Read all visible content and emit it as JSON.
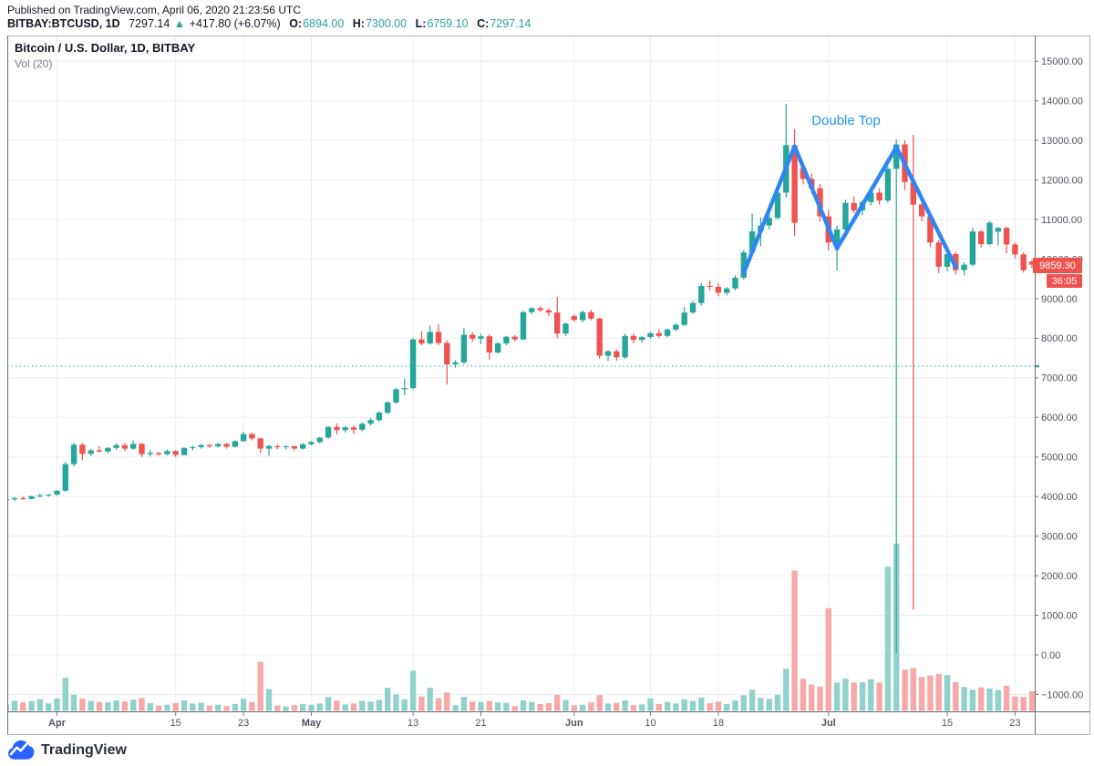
{
  "header": {
    "published_line": "Published on TradingView.com, April 06, 2020 21:23:56 UTC",
    "symbol_bold": "BITBAY:BTCUSD, 1D",
    "last_price": "7297.14",
    "change_arrow": "▲",
    "change_text": "+417.80 (+6.07%)",
    "o_label": "O:",
    "o_value": "6894.00",
    "h_label": "H:",
    "h_value": "7300.00",
    "l_label": "L:",
    "l_value": "6759.10",
    "c_label": "C:",
    "c_value": "7297.14"
  },
  "legend": {
    "title": "Bitcoin / U.S. Dollar, 1D, BITBAY",
    "indicator": "Vol (20)"
  },
  "annotation": {
    "label": "Double Top"
  },
  "price_scale": {
    "badge_price": "9859.30",
    "badge_countdown": "36:05",
    "ticks": [
      {
        "v": 15000,
        "label": "15000.00"
      },
      {
        "v": 14000,
        "label": "14000.00"
      },
      {
        "v": 13000,
        "label": "13000.00"
      },
      {
        "v": 12000,
        "label": "12000.00"
      },
      {
        "v": 11000,
        "label": "11000.00"
      },
      {
        "v": 10000,
        "label": "10000.00"
      },
      {
        "v": 9000,
        "label": "9000.00"
      },
      {
        "v": 8000,
        "label": "8000.00"
      },
      {
        "v": 7000,
        "label": "7000.00"
      },
      {
        "v": 6000,
        "label": "6000.00"
      },
      {
        "v": 5000,
        "label": "5000.00"
      },
      {
        "v": 4000,
        "label": "4000.00"
      },
      {
        "v": 3000,
        "label": "3000.00"
      },
      {
        "v": 2000,
        "label": "2000.00"
      },
      {
        "v": 1000,
        "label": "1000.00"
      },
      {
        "v": 0,
        "label": "0.00"
      },
      {
        "v": -1000,
        "label": "−1000.00"
      }
    ]
  },
  "time_scale": {
    "ticks": [
      {
        "label": "Apr",
        "day": 6,
        "month": true
      },
      {
        "label": "15",
        "day": 20,
        "month": false
      },
      {
        "label": "23",
        "day": 28,
        "month": false
      },
      {
        "label": "May",
        "day": 36,
        "month": true
      },
      {
        "label": "13",
        "day": 48,
        "month": false
      },
      {
        "label": "21",
        "day": 56,
        "month": false
      },
      {
        "label": "Jun",
        "day": 67,
        "month": true
      },
      {
        "label": "10",
        "day": 76,
        "month": false
      },
      {
        "label": "18",
        "day": 84,
        "month": false
      },
      {
        "label": "Jul",
        "day": 97,
        "month": true
      },
      {
        "label": "15",
        "day": 111,
        "month": false
      },
      {
        "label": "23",
        "day": 119,
        "month": false
      }
    ]
  },
  "current_price_line": {
    "price": 7297.14
  },
  "logo": {
    "text": "TradingView"
  },
  "colors": {
    "up": "#26a69a",
    "down": "#ef5350",
    "vol_up": "#92d2cc",
    "vol_down": "#f7a9a7",
    "pattern_line": "#2e86f5",
    "annotation_text": "#2196f3",
    "badge": "#ef5350",
    "grid": "#e9edf2",
    "frame": "#b2b5be",
    "frame_dark": "#6a6d78",
    "axis_text": "#50535c",
    "logo_blue": "#2962ff"
  },
  "chart_data": {
    "type": "candlestick+volume",
    "symbol": "BITBAY:BTCUSD",
    "interval": "1D",
    "title": "Bitcoin / U.S. Dollar",
    "ylim": [
      -1427,
      15650
    ],
    "grid": true,
    "volume_note": "v = volume bar top read on the shared right price axis; bars rise from pane bottom (-1427)",
    "columns": [
      "date",
      "open",
      "high",
      "low",
      "close",
      "v"
    ],
    "candles": [
      [
        "Mar 26",
        3900,
        3960,
        3870,
        3930,
        -1250
      ],
      [
        "Mar 27",
        3930,
        3990,
        3890,
        3960,
        -1160
      ],
      [
        "Mar 28",
        3960,
        4000,
        3920,
        3940,
        -1200
      ],
      [
        "Mar 29",
        3940,
        4020,
        3930,
        4010,
        -1170
      ],
      [
        "Mar 30",
        4010,
        4080,
        3970,
        4030,
        -1120
      ],
      [
        "Mar 31",
        4030,
        4060,
        3990,
        4050,
        -1230
      ],
      [
        "Apr 1",
        4050,
        4160,
        4020,
        4150,
        -1100
      ],
      [
        "Apr 2",
        4150,
        4880,
        4120,
        4820,
        -580
      ],
      [
        "Apr 3",
        4820,
        5360,
        4760,
        5310,
        -1010
      ],
      [
        "Apr 4",
        5310,
        5350,
        4920,
        5080,
        -1100
      ],
      [
        "Apr 5",
        5080,
        5200,
        5030,
        5170,
        -1160
      ],
      [
        "Apr 6",
        5170,
        5280,
        5110,
        5140,
        -1190
      ],
      [
        "Apr 7",
        5140,
        5250,
        5090,
        5230,
        -1200
      ],
      [
        "Apr 8",
        5230,
        5350,
        5180,
        5300,
        -1150
      ],
      [
        "Apr 9",
        5300,
        5350,
        5150,
        5210,
        -1180
      ],
      [
        "Apr 10",
        5210,
        5420,
        5180,
        5330,
        -1130
      ],
      [
        "Apr 11",
        5330,
        5360,
        5000,
        5070,
        -1090
      ],
      [
        "Apr 12",
        5070,
        5180,
        5010,
        5100,
        -1220
      ],
      [
        "Apr 13",
        5100,
        5130,
        5030,
        5070,
        -1280
      ],
      [
        "Apr 14",
        5070,
        5190,
        5040,
        5150,
        -1260
      ],
      [
        "Apr 15",
        5150,
        5170,
        5000,
        5050,
        -1220
      ],
      [
        "Apr 16",
        5050,
        5250,
        5040,
        5230,
        -1150
      ],
      [
        "Apr 17",
        5230,
        5290,
        5170,
        5250,
        -1230
      ],
      [
        "Apr 18",
        5250,
        5320,
        5210,
        5300,
        -1210
      ],
      [
        "Apr 19",
        5300,
        5330,
        5230,
        5270,
        -1280
      ],
      [
        "Apr 20",
        5270,
        5350,
        5240,
        5330,
        -1260
      ],
      [
        "Apr 21",
        5330,
        5350,
        5210,
        5260,
        -1290
      ],
      [
        "Apr 22",
        5260,
        5420,
        5240,
        5400,
        -1240
      ],
      [
        "Apr 23",
        5400,
        5640,
        5380,
        5580,
        -1110
      ],
      [
        "Apr 24",
        5580,
        5620,
        5420,
        5470,
        -1190
      ],
      [
        "Apr 25",
        5470,
        5480,
        5100,
        5210,
        -180
      ],
      [
        "Apr 26",
        5210,
        5310,
        5030,
        5280,
        -860
      ],
      [
        "Apr 27",
        5280,
        5310,
        5200,
        5250,
        -1280
      ],
      [
        "Apr 28",
        5250,
        5300,
        5190,
        5270,
        -1300
      ],
      [
        "Apr 29",
        5270,
        5290,
        5160,
        5210,
        -1270
      ],
      [
        "Apr 30",
        5210,
        5350,
        5190,
        5320,
        -1240
      ],
      [
        "May 1",
        5320,
        5400,
        5290,
        5380,
        -1260
      ],
      [
        "May 2",
        5380,
        5510,
        5340,
        5490,
        -1230
      ],
      [
        "May 3",
        5490,
        5780,
        5460,
        5760,
        -1060
      ],
      [
        "May 4",
        5760,
        5850,
        5570,
        5680,
        -1160
      ],
      [
        "May 5",
        5680,
        5790,
        5620,
        5750,
        -1250
      ],
      [
        "May 6",
        5750,
        5800,
        5580,
        5690,
        -1230
      ],
      [
        "May 7",
        5690,
        5880,
        5650,
        5840,
        -1160
      ],
      [
        "May 8",
        5840,
        5980,
        5800,
        5930,
        -1180
      ],
      [
        "May 9",
        5930,
        6160,
        5890,
        6120,
        -1140
      ],
      [
        "May 10",
        6120,
        6410,
        6080,
        6380,
        -830
      ],
      [
        "May 11",
        6380,
        6750,
        6340,
        6710,
        -1000
      ],
      [
        "May 12",
        6710,
        6980,
        6560,
        6740,
        -1120
      ],
      [
        "May 13",
        6740,
        8000,
        6710,
        7970,
        -400
      ],
      [
        "May 14",
        7970,
        8180,
        7820,
        7870,
        -1050
      ],
      [
        "May 15",
        7870,
        8320,
        7840,
        8160,
        -830
      ],
      [
        "May 16",
        8160,
        8360,
        7830,
        7880,
        -1090
      ],
      [
        "May 17",
        7880,
        7950,
        6830,
        7340,
        -950
      ],
      [
        "May 18",
        7340,
        7450,
        7260,
        7390,
        -1270
      ],
      [
        "May 19",
        7390,
        8270,
        7350,
        8090,
        -1060
      ],
      [
        "May 20",
        8090,
        8160,
        7900,
        7990,
        -1180
      ],
      [
        "May 21",
        7990,
        8110,
        7850,
        8050,
        -1190
      ],
      [
        "May 22",
        8050,
        8100,
        7460,
        7640,
        -1170
      ],
      [
        "May 23",
        7640,
        7900,
        7610,
        7870,
        -1200
      ],
      [
        "May 24",
        7870,
        8060,
        7830,
        8040,
        -1210
      ],
      [
        "May 25",
        8040,
        8080,
        7920,
        7970,
        -1290
      ],
      [
        "May 26",
        7970,
        8690,
        7950,
        8660,
        -1150
      ],
      [
        "May 27",
        8660,
        8790,
        8600,
        8760,
        -1190
      ],
      [
        "May 28",
        8760,
        8810,
        8660,
        8710,
        -1240
      ],
      [
        "May 29",
        8710,
        8760,
        8560,
        8650,
        -1220
      ],
      [
        "May 30",
        8650,
        9040,
        8000,
        8120,
        -1010
      ],
      [
        "May 31",
        8120,
        8400,
        8050,
        8370,
        -1140
      ],
      [
        "Jun 1",
        8560,
        8600,
        8420,
        8460,
        -1270
      ],
      [
        "Jun 2",
        8460,
        8700,
        8400,
        8660,
        -1260
      ],
      [
        "Jun 3",
        8660,
        8720,
        8450,
        8500,
        -1200
      ],
      [
        "Jun 4",
        8500,
        8520,
        7480,
        7560,
        -1020
      ],
      [
        "Jun 5",
        7560,
        7700,
        7420,
        7670,
        -1230
      ],
      [
        "Jun 6",
        7670,
        7720,
        7430,
        7520,
        -1210
      ],
      [
        "Jun 7",
        7520,
        8120,
        7480,
        8060,
        -1150
      ],
      [
        "Jun 8",
        8060,
        8120,
        7870,
        7960,
        -1270
      ],
      [
        "Jun 9",
        7960,
        8060,
        7890,
        8030,
        -1250
      ],
      [
        "Jun 10",
        8030,
        8160,
        7990,
        8130,
        -1100
      ],
      [
        "Jun 11",
        8130,
        8230,
        8010,
        8060,
        -1240
      ],
      [
        "Jun 12",
        8060,
        8250,
        8020,
        8220,
        -1190
      ],
      [
        "Jun 13",
        8220,
        8380,
        8180,
        8340,
        -1230
      ],
      [
        "Jun 14",
        8340,
        8790,
        8310,
        8650,
        -1120
      ],
      [
        "Jun 15",
        8650,
        8940,
        8610,
        8890,
        -1160
      ],
      [
        "Jun 16",
        8890,
        9390,
        8830,
        9320,
        -1080
      ],
      [
        "Jun 17",
        9320,
        9460,
        9210,
        9300,
        -1220
      ],
      [
        "Jun 18",
        9300,
        9390,
        9060,
        9150,
        -1180
      ],
      [
        "Jun 19",
        9150,
        9290,
        9080,
        9260,
        -1240
      ],
      [
        "Jun 20",
        9260,
        9590,
        9210,
        9530,
        -1150
      ],
      [
        "Jun 21",
        9530,
        10230,
        9480,
        10170,
        -1020
      ],
      [
        "Jun 22",
        10170,
        11150,
        10080,
        10700,
        -880
      ],
      [
        "Jun 23",
        10700,
        11050,
        10330,
        10850,
        -1090
      ],
      [
        "Jun 24",
        10850,
        11290,
        10750,
        11040,
        -1110
      ],
      [
        "Jun 25",
        11040,
        11760,
        11000,
        11680,
        -1010
      ],
      [
        "Jun 26",
        11680,
        13920,
        11550,
        12880,
        -350
      ],
      [
        "Jun 27",
        12880,
        13280,
        10580,
        10920,
        2130
      ],
      [
        "Jun 28",
        12300,
        12440,
        11890,
        12030,
        -600
      ],
      [
        "Jun 29",
        12030,
        12160,
        11660,
        11790,
        -750
      ],
      [
        "Jun 30",
        11790,
        11900,
        10950,
        11080,
        -800
      ],
      [
        "Jul 1",
        11080,
        11250,
        10220,
        10420,
        1180
      ],
      [
        "Jul 2",
        10420,
        10850,
        9710,
        10750,
        -700
      ],
      [
        "Jul 3",
        10750,
        11500,
        10620,
        11420,
        -600
      ],
      [
        "Jul 4",
        11420,
        11580,
        11160,
        11230,
        -700
      ],
      [
        "Jul 5",
        11230,
        11480,
        11110,
        11440,
        -690
      ],
      [
        "Jul 6",
        11440,
        11740,
        11360,
        11680,
        -620
      ],
      [
        "Jul 7",
        11680,
        11790,
        11380,
        11480,
        -700
      ],
      [
        "Jul 8",
        11480,
        12340,
        11430,
        12280,
        2230
      ],
      [
        "Jul 9",
        12280,
        13020,
        46,
        12900,
        2810
      ],
      [
        "Jul 10",
        12900,
        13000,
        11750,
        11950,
        -370
      ],
      [
        "Jul 11",
        11950,
        13140,
        1150,
        11380,
        -330
      ],
      [
        "Jul 12",
        11380,
        11570,
        10960,
        11080,
        -560
      ],
      [
        "Jul 13",
        11080,
        11180,
        10300,
        10420,
        -520
      ],
      [
        "Jul 14",
        10420,
        10490,
        9650,
        9810,
        -480
      ],
      [
        "Jul 15",
        9810,
        10220,
        9690,
        10130,
        -510
      ],
      [
        "Jul 16",
        10130,
        10180,
        9610,
        9720,
        -690
      ],
      [
        "Jul 17",
        9720,
        9920,
        9590,
        9860,
        -810
      ],
      [
        "Jul 18",
        9860,
        10790,
        9820,
        10700,
        -880
      ],
      [
        "Jul 19",
        10700,
        10740,
        10290,
        10380,
        -820
      ],
      [
        "Jul 20",
        10380,
        10960,
        10350,
        10920,
        -850
      ],
      [
        "Jul 21",
        10690,
        10810,
        10350,
        10790,
        -890
      ],
      [
        "Jul 22",
        10790,
        10820,
        10150,
        10370,
        -780
      ],
      [
        "Jul 23",
        10370,
        10420,
        10020,
        10120,
        -1050
      ],
      [
        "Jul 24",
        10120,
        10170,
        9660,
        9720,
        -1060
      ],
      [
        "Jul 25",
        9940,
        9980,
        9770,
        9859.3,
        -920
      ]
    ],
    "pattern_line": {
      "name": "Double Top zigzag",
      "points": [
        [
          87,
          9650
        ],
        [
          93,
          12850
        ],
        [
          98,
          10270
        ],
        [
          105,
          12830
        ],
        [
          112,
          9800
        ]
      ]
    },
    "label": {
      "text": "Double Top",
      "day": 99,
      "price": 13480
    },
    "current_price_line": 7297.14,
    "last_close": 9859.3
  }
}
